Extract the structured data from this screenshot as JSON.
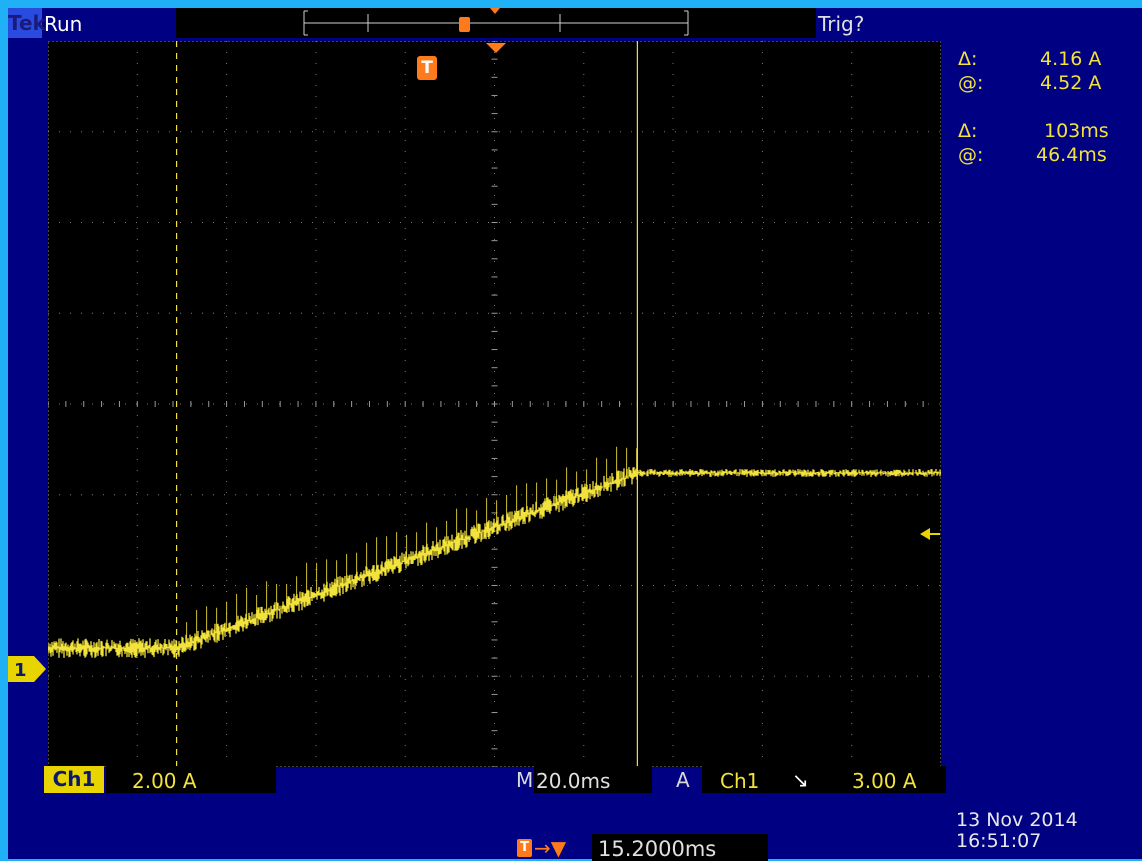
{
  "header": {
    "brand": "Tek",
    "acquisition_state": "Run",
    "trigger_status": "Trig?"
  },
  "cursor_readout": {
    "amplitude": {
      "delta_symbol": "Δ:",
      "delta_value": "4.16 A",
      "at_symbol": "@:",
      "at_value": "4.52 A"
    },
    "time": {
      "delta_symbol": "Δ:",
      "delta_value": "103ms",
      "at_symbol": "@:",
      "at_value": "46.4ms"
    }
  },
  "channel": {
    "marker_label": "1",
    "name": "Ch1",
    "scale": "2.00 A"
  },
  "timebase": {
    "prefix": "M",
    "value": "20.0ms"
  },
  "trigger": {
    "mode": "A",
    "source": "Ch1",
    "slope_symbol": "↘",
    "level": "3.00 A",
    "marker_label": "T"
  },
  "horizontal_position": {
    "value": "15.2000ms"
  },
  "timestamp": {
    "date": "13 Nov 2014",
    "time": "16:51:07"
  },
  "colors": {
    "trace": "#f2e23c",
    "trigger_marker": "#ff7a1a",
    "background": "#000082",
    "frame": "#1fb0f5"
  }
}
